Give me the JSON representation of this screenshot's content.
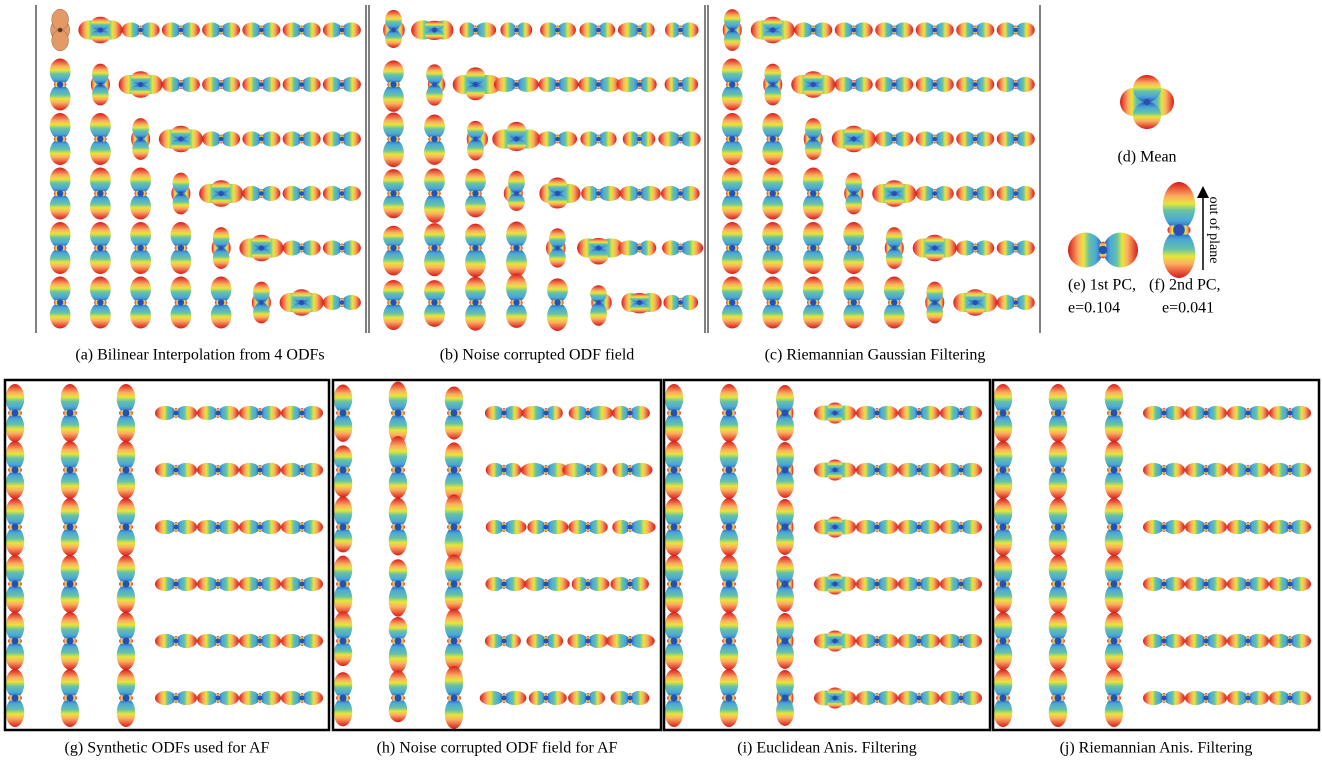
{
  "panels": [
    {
      "caption": "(a) Bilinear Interpolation from 4 ODFs"
    },
    {
      "caption": "(b) Noise corrupted ODF field"
    },
    {
      "caption": "(c) Riemannian Gaussian Filtering"
    },
    {
      "caption": "(g) Synthetic ODFs used for AF"
    },
    {
      "caption": "(h) Noise corrupted ODF field for AF"
    },
    {
      "caption": "(i) Euclidean Anis. Filtering"
    },
    {
      "caption": "(j) Riemannian Anis. Filtering"
    }
  ],
  "side": {
    "mean": {
      "caption": "(d) Mean"
    },
    "pc1": {
      "caption": "(e)  1st PC,",
      "eigen": "e=0.104"
    },
    "pc2": {
      "caption": "(f)  2nd PC,",
      "eigen": "e=0.041"
    },
    "arrow_label": "out of plane"
  }
}
